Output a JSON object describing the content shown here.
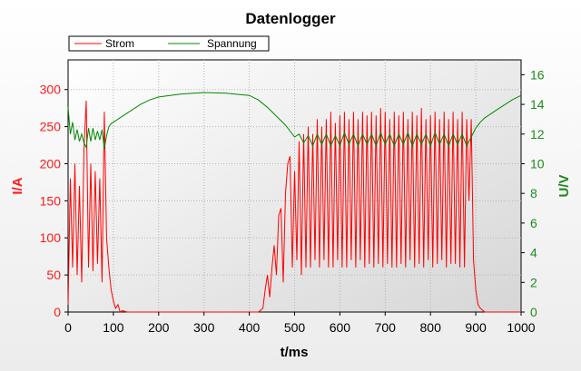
{
  "chart_data": {
    "type": "line",
    "title": "Datenlogger",
    "xlabel": "t/ms",
    "ylabel_left": "I/A",
    "ylabel_right": "U/V",
    "xlim": [
      0,
      1000
    ],
    "ylim_left": [
      0,
      340
    ],
    "ylim_right": [
      0,
      17
    ],
    "x_ticks": [
      0,
      100,
      200,
      300,
      400,
      500,
      600,
      700,
      800,
      900,
      1000
    ],
    "y_left_ticks": [
      0,
      50,
      100,
      150,
      200,
      250,
      300
    ],
    "y_right_ticks": [
      0,
      2,
      4,
      6,
      8,
      10,
      12,
      14,
      16
    ],
    "grid": true,
    "legend_position": "top-left",
    "colors": {
      "strom": "#ff0000",
      "spannung": "#008800",
      "left_axis": "#ff1a1a",
      "right_axis": "#1e8a1e"
    },
    "series": [
      {
        "name": "Strom",
        "axis": "left",
        "x": [
          0,
          5,
          10,
          15,
          20,
          25,
          30,
          35,
          40,
          45,
          50,
          55,
          60,
          65,
          70,
          75,
          80,
          85,
          90,
          95,
          100,
          105,
          110,
          115,
          120,
          130,
          200,
          300,
          400,
          420,
          430,
          435,
          440,
          445,
          450,
          455,
          460,
          465,
          470,
          475,
          480,
          485,
          490,
          495,
          500,
          505,
          510,
          515,
          520,
          525,
          530,
          535,
          540,
          545,
          550,
          555,
          560,
          565,
          570,
          575,
          580,
          585,
          590,
          595,
          600,
          605,
          610,
          615,
          620,
          625,
          630,
          635,
          640,
          645,
          650,
          655,
          660,
          665,
          670,
          675,
          680,
          685,
          690,
          695,
          700,
          705,
          710,
          715,
          720,
          725,
          730,
          735,
          740,
          745,
          750,
          755,
          760,
          765,
          770,
          775,
          780,
          785,
          790,
          795,
          800,
          805,
          810,
          815,
          820,
          825,
          830,
          835,
          840,
          845,
          850,
          855,
          860,
          865,
          870,
          875,
          880,
          885,
          890,
          895,
          900,
          905,
          910,
          920,
          1000
        ],
        "y": [
          10,
          180,
          60,
          200,
          50,
          170,
          40,
          220,
          285,
          60,
          200,
          55,
          190,
          65,
          180,
          40,
          270,
          100,
          60,
          30,
          15,
          5,
          10,
          0,
          2,
          0,
          0,
          0,
          0,
          0,
          5,
          30,
          50,
          20,
          60,
          90,
          50,
          130,
          140,
          40,
          160,
          200,
          210,
          60,
          190,
          70,
          230,
          50,
          240,
          60,
          250,
          60,
          240,
          70,
          260,
          60,
          250,
          70,
          260,
          60,
          270,
          60,
          255,
          70,
          265,
          60,
          270,
          60,
          260,
          70,
          270,
          60,
          260,
          70,
          270,
          60,
          265,
          65,
          270,
          60,
          265,
          65,
          275,
          60,
          270,
          65,
          260,
          60,
          270,
          60,
          265,
          65,
          270,
          60,
          260,
          70,
          270,
          60,
          265,
          65,
          275,
          60,
          260,
          70,
          265,
          60,
          270,
          65,
          260,
          70,
          270,
          60,
          260,
          65,
          270,
          65,
          260,
          60,
          270,
          60,
          260,
          150,
          260,
          70,
          30,
          10,
          5,
          0,
          0
        ]
      },
      {
        "name": "Spannung",
        "axis": "right",
        "x": [
          0,
          5,
          10,
          15,
          20,
          25,
          30,
          35,
          40,
          45,
          50,
          55,
          60,
          65,
          70,
          75,
          80,
          85,
          90,
          95,
          100,
          110,
          120,
          140,
          160,
          180,
          200,
          250,
          300,
          350,
          400,
          420,
          440,
          460,
          480,
          490,
          500,
          510,
          520,
          530,
          540,
          550,
          560,
          570,
          580,
          590,
          600,
          610,
          620,
          630,
          640,
          650,
          660,
          670,
          680,
          690,
          700,
          710,
          720,
          730,
          740,
          750,
          760,
          770,
          780,
          790,
          800,
          810,
          820,
          830,
          840,
          850,
          860,
          870,
          880,
          890,
          900,
          910,
          920,
          940,
          960,
          980,
          1000
        ],
        "y": [
          13.8,
          12.0,
          12.8,
          11.6,
          12.3,
          11.5,
          12.0,
          11.4,
          11.1,
          12.4,
          11.5,
          12.4,
          11.6,
          12.2,
          11.6,
          12.3,
          11.0,
          11.9,
          12.5,
          12.7,
          12.8,
          13.0,
          13.2,
          13.6,
          14.0,
          14.3,
          14.5,
          14.7,
          14.8,
          14.75,
          14.6,
          14.3,
          13.8,
          13.2,
          12.6,
          12.2,
          11.8,
          12.0,
          11.4,
          11.9,
          11.2,
          12.0,
          11.3,
          12.0,
          11.2,
          11.9,
          11.2,
          12.1,
          11.3,
          12.0,
          11.2,
          12.0,
          11.3,
          12.0,
          11.2,
          12.1,
          11.3,
          12.0,
          11.2,
          12.0,
          11.3,
          12.1,
          11.2,
          12.0,
          11.3,
          12.0,
          11.2,
          12.1,
          11.3,
          12.0,
          11.2,
          12.0,
          11.3,
          12.0,
          11.2,
          11.8,
          12.4,
          12.8,
          13.1,
          13.5,
          13.9,
          14.3,
          14.6
        ]
      }
    ]
  }
}
